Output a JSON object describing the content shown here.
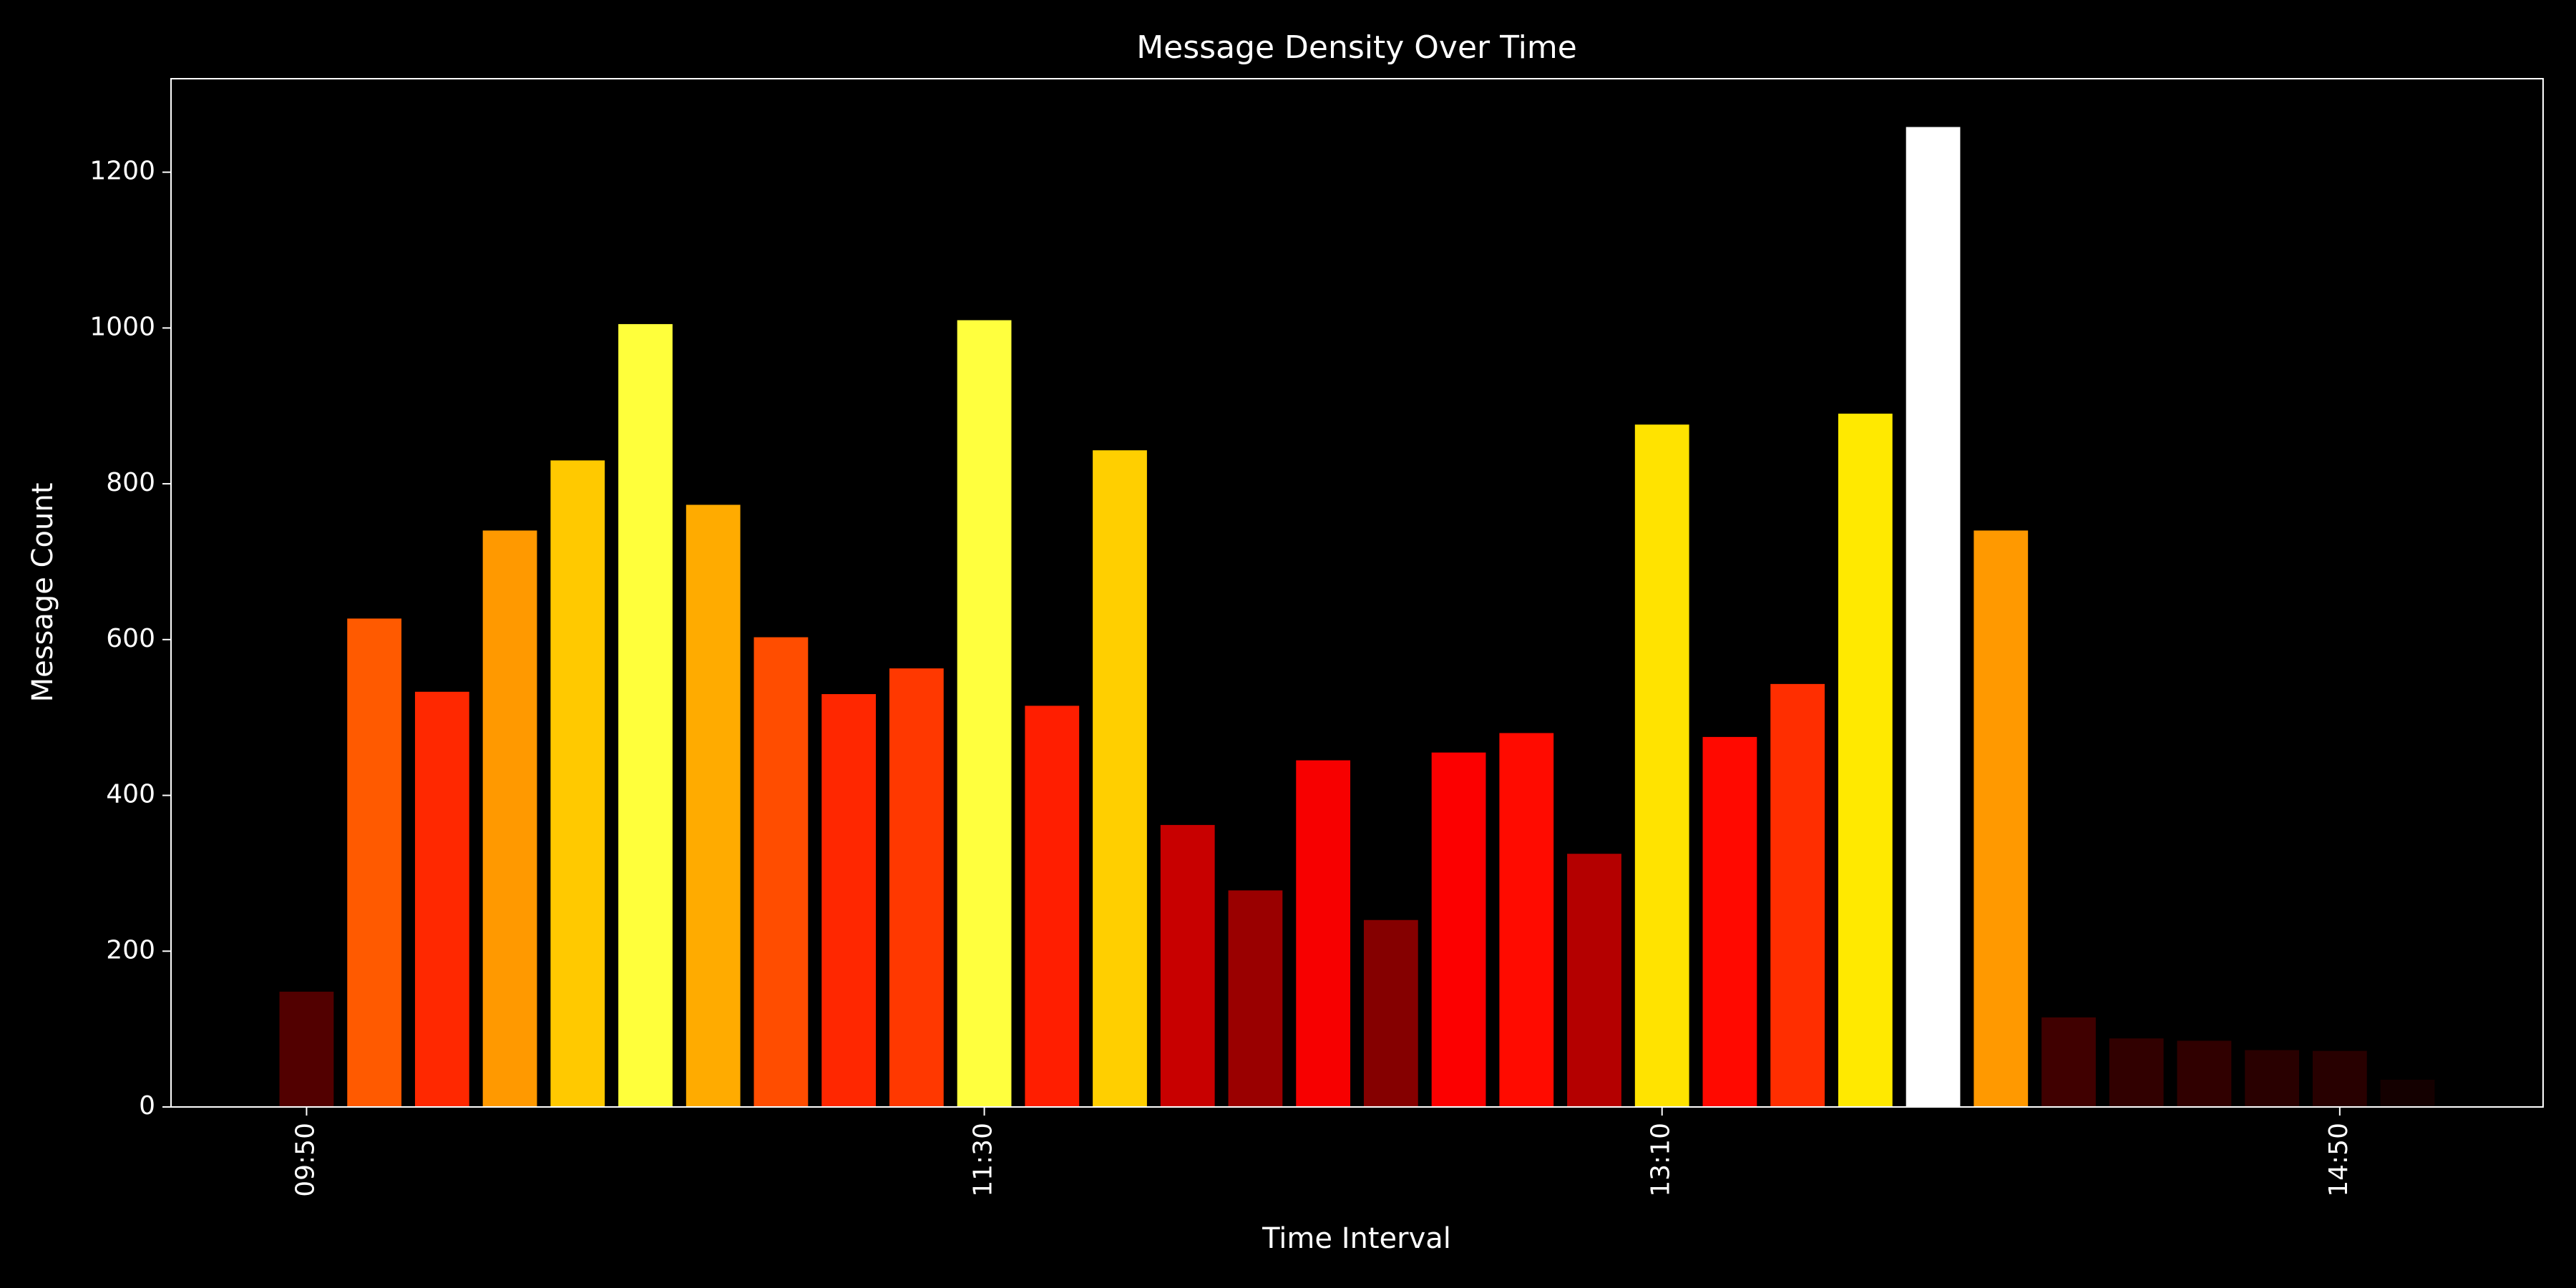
{
  "chart_data": {
    "type": "bar",
    "title": "Message Density Over Time",
    "x_label": "Time Interval",
    "y_label": "Message Count",
    "categories": [
      "09:50",
      null,
      null,
      null,
      null,
      null,
      null,
      null,
      null,
      null,
      "11:30",
      null,
      null,
      null,
      null,
      null,
      null,
      null,
      null,
      null,
      "13:10",
      null,
      null,
      null,
      null,
      null,
      null,
      null,
      null,
      null,
      "14:50",
      null
    ],
    "values": [
      148,
      627,
      533,
      740,
      830,
      1005,
      773,
      603,
      530,
      563,
      1010,
      515,
      843,
      362,
      278,
      445,
      240,
      455,
      480,
      325,
      876,
      475,
      543,
      890,
      1258,
      740,
      115,
      88,
      85,
      73,
      72,
      35
    ],
    "colors": [
      "#520000",
      "#ff5a00",
      "#ff2800",
      "#ff9900",
      "#ffc900",
      "#ffff3b",
      "#ffab00",
      "#ff4d00",
      "#ff2700",
      "#ff3800",
      "#ffff3e",
      "#ff1e00",
      "#ffcf00",
      "#c80000",
      "#9a0000",
      "#f70000",
      "#850000",
      "#fc0000",
      "#ff0b00",
      "#b40000",
      "#ffe300",
      "#ff0900",
      "#ff2e00",
      "#ffe900",
      "#ffffff",
      "#ff9900",
      "#400000",
      "#310000",
      "#300000",
      "#290000",
      "#280000",
      "#140000"
    ],
    "ylim": [
      0,
      1320
    ],
    "yticks": [
      0,
      200,
      400,
      600,
      800,
      1000,
      1200
    ],
    "grid": false
  }
}
